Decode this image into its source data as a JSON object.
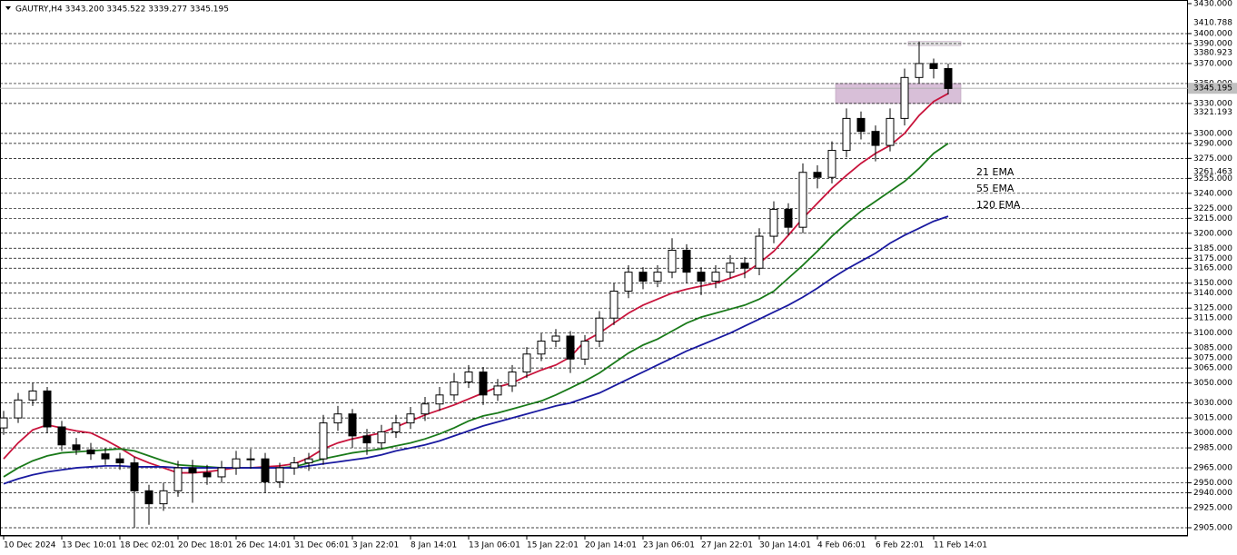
{
  "chart_data": {
    "type": "candlestick",
    "title": "GAUTRY,H4  3343.200 3345.522 3339.277 3345.195",
    "categories": [
      "10 Dec 2024",
      null,
      null,
      null,
      "13 Dec 10:01",
      null,
      null,
      null,
      "18 Dec 02:01",
      null,
      null,
      null,
      "20 Dec 18:01",
      null,
      null,
      null,
      "26 Dec 14:01",
      null,
      null,
      null,
      "31 Dec 06:01",
      null,
      null,
      null,
      "3 Jan 22:01",
      null,
      null,
      null,
      "8 Jan 14:01",
      null,
      null,
      null,
      "13 Jan 06:01",
      null,
      null,
      null,
      "15 Jan 22:01",
      null,
      null,
      null,
      "20 Jan 14:01",
      null,
      null,
      null,
      "23 Jan 06:01",
      null,
      null,
      null,
      "27 Jan 22:01",
      null,
      null,
      null,
      "30 Jan 14:01",
      null,
      null,
      null,
      "4 Feb 06:01",
      null,
      null,
      null,
      "6 Feb 22:01",
      null,
      null,
      null,
      "11 Feb 14:01",
      null
    ],
    "ohlc": [
      [
        3005,
        3022,
        2998,
        3015
      ],
      [
        3015,
        3040,
        3010,
        3033
      ],
      [
        3033,
        3050,
        3027,
        3042
      ],
      [
        3042,
        3046,
        3000,
        3006
      ],
      [
        3006,
        3012,
        2982,
        2988
      ],
      [
        2988,
        2995,
        2978,
        2983
      ],
      [
        2983,
        2990,
        2973,
        2979
      ],
      [
        2979,
        2985,
        2968,
        2974
      ],
      [
        2974,
        2980,
        2963,
        2970
      ],
      [
        2970,
        2976,
        2905,
        2942
      ],
      [
        2942,
        2948,
        2908,
        2929
      ],
      [
        2929,
        2950,
        2922,
        2942
      ],
      [
        2942,
        2972,
        2936,
        2965
      ],
      [
        2965,
        2973,
        2930,
        2960
      ],
      [
        2960,
        2968,
        2948,
        2956
      ],
      [
        2956,
        2972,
        2950,
        2965
      ],
      [
        2965,
        2982,
        2958,
        2974
      ],
      [
        2974,
        2984,
        2964,
        2974
      ],
      [
        2974,
        2980,
        2940,
        2951
      ],
      [
        2951,
        2970,
        2945,
        2965
      ],
      [
        2965,
        2976,
        2958,
        2970
      ],
      [
        2970,
        2980,
        2962,
        2974
      ],
      [
        2974,
        3018,
        2968,
        3010
      ],
      [
        3010,
        3027,
        3002,
        3019
      ],
      [
        3019,
        3024,
        2985,
        2997
      ],
      [
        2997,
        3004,
        2978,
        2990
      ],
      [
        2990,
        3008,
        2984,
        3001
      ],
      [
        3001,
        3018,
        2995,
        3010
      ],
      [
        3010,
        3026,
        3004,
        3019
      ],
      [
        3019,
        3036,
        3012,
        3029
      ],
      [
        3029,
        3046,
        3022,
        3038
      ],
      [
        3038,
        3060,
        3032,
        3051
      ],
      [
        3051,
        3068,
        3045,
        3061
      ],
      [
        3061,
        3066,
        3028,
        3038
      ],
      [
        3038,
        3054,
        3032,
        3047
      ],
      [
        3047,
        3068,
        3041,
        3061
      ],
      [
        3061,
        3086,
        3055,
        3079
      ],
      [
        3079,
        3100,
        3072,
        3092
      ],
      [
        3092,
        3104,
        3086,
        3097
      ],
      [
        3097,
        3102,
        3060,
        3074
      ],
      [
        3074,
        3098,
        3068,
        3092
      ],
      [
        3092,
        3122,
        3086,
        3115
      ],
      [
        3115,
        3150,
        3108,
        3142
      ],
      [
        3142,
        3168,
        3135,
        3161
      ],
      [
        3161,
        3166,
        3144,
        3152
      ],
      [
        3152,
        3168,
        3146,
        3161
      ],
      [
        3161,
        3195,
        3155,
        3183
      ],
      [
        3183,
        3189,
        3150,
        3161
      ],
      [
        3161,
        3166,
        3138,
        3152
      ],
      [
        3152,
        3168,
        3145,
        3161
      ],
      [
        3161,
        3178,
        3155,
        3170
      ],
      [
        3170,
        3176,
        3155,
        3165
      ],
      [
        3165,
        3205,
        3158,
        3197
      ],
      [
        3197,
        3232,
        3190,
        3224
      ],
      [
        3224,
        3230,
        3198,
        3206
      ],
      [
        3206,
        3270,
        3200,
        3261
      ],
      [
        3261,
        3268,
        3245,
        3256
      ],
      [
        3256,
        3292,
        3250,
        3283
      ],
      [
        3283,
        3325,
        3276,
        3315
      ],
      [
        3315,
        3322,
        3294,
        3302
      ],
      [
        3302,
        3308,
        3272,
        3288
      ],
      [
        3288,
        3325,
        3282,
        3315
      ],
      [
        3315,
        3365,
        3308,
        3356
      ],
      [
        3356,
        3392,
        3350,
        3370
      ],
      [
        3370,
        3375,
        3355,
        3365
      ],
      [
        3365,
        3370,
        3339,
        3345
      ]
    ],
    "series": [
      {
        "name": "21 EMA",
        "color": "#c8143c",
        "values": [
          2974,
          2990,
          3003,
          3008,
          3005,
          3002,
          3000,
          2993,
          2985,
          2976,
          2970,
          2965,
          2960,
          2960,
          2961,
          2963,
          2965,
          2965,
          2966,
          2967,
          2969,
          2975,
          2984,
          2990,
          2994,
          2997,
          3000,
          3006,
          3012,
          3018,
          3023,
          3028,
          3034,
          3040,
          3046,
          3050,
          3057,
          3063,
          3068,
          3076,
          3092,
          3100,
          3110,
          3120,
          3128,
          3134,
          3140,
          3144,
          3147,
          3150,
          3155,
          3160,
          3170,
          3182,
          3198,
          3215,
          3230,
          3245,
          3258,
          3270,
          3280,
          3288,
          3300,
          3318,
          3332,
          3340
        ]
      },
      {
        "name": "55 EMA",
        "color": "#1a7a1a",
        "values": [
          2956,
          2965,
          2972,
          2977,
          2980,
          2981,
          2982,
          2983,
          2984,
          2982,
          2977,
          2972,
          2968,
          2967,
          2966,
          2965,
          2965,
          2965,
          2965,
          2965,
          2966,
          2970,
          2974,
          2977,
          2980,
          2982,
          2984,
          2987,
          2990,
          2994,
          2999,
          3005,
          3012,
          3017,
          3020,
          3024,
          3028,
          3032,
          3038,
          3045,
          3052,
          3060,
          3070,
          3080,
          3088,
          3094,
          3102,
          3110,
          3116,
          3120,
          3124,
          3128,
          3134,
          3142,
          3155,
          3168,
          3182,
          3197,
          3210,
          3222,
          3232,
          3242,
          3252,
          3265,
          3280,
          3290
        ]
      },
      {
        "name": "120 EMA",
        "color": "#1a1aa0",
        "values": [
          2949,
          2954,
          2958,
          2961,
          2963,
          2965,
          2966,
          2967,
          2967,
          2966,
          2966,
          2966,
          2965,
          2965,
          2965,
          2965,
          2965,
          2965,
          2965,
          2965,
          2965,
          2967,
          2969,
          2971,
          2973,
          2975,
          2978,
          2982,
          2985,
          2988,
          2992,
          2997,
          3002,
          3007,
          3011,
          3015,
          3019,
          3023,
          3027,
          3030,
          3035,
          3040,
          3047,
          3054,
          3061,
          3068,
          3075,
          3082,
          3088,
          3094,
          3100,
          3107,
          3114,
          3121,
          3128,
          3136,
          3145,
          3155,
          3164,
          3172,
          3180,
          3190,
          3198,
          3205,
          3212,
          3217
        ]
      }
    ],
    "ylim": [
      2905,
      3430
    ],
    "yticks": [
      {
        "value": 3430,
        "label": "3430.000"
      },
      {
        "value": 3400,
        "label": "3400.000"
      },
      {
        "value": 3390,
        "label": "3390.000"
      },
      {
        "value": 3370,
        "label": "3370.000"
      },
      {
        "value": 3350,
        "label": "3350.000"
      },
      {
        "value": 3330,
        "label": "3330.000"
      },
      {
        "value": 3300,
        "label": "3300.000"
      },
      {
        "value": 3290,
        "label": "3290.000"
      },
      {
        "value": 3275,
        "label": "3275.000"
      },
      {
        "value": 3255,
        "label": "3255.000"
      },
      {
        "value": 3240,
        "label": "3240.000"
      },
      {
        "value": 3225,
        "label": "3225.000"
      },
      {
        "value": 3215,
        "label": "3215.000"
      },
      {
        "value": 3200,
        "label": "3200.000"
      },
      {
        "value": 3185,
        "label": "3185.000"
      },
      {
        "value": 3175,
        "label": "3175.000"
      },
      {
        "value": 3165,
        "label": "3165.000"
      },
      {
        "value": 3150,
        "label": "3150.000"
      },
      {
        "value": 3140,
        "label": "3140.000"
      },
      {
        "value": 3125,
        "label": "3125.000"
      },
      {
        "value": 3115,
        "label": "3115.000"
      },
      {
        "value": 3100,
        "label": "3100.000"
      },
      {
        "value": 3085,
        "label": "3085.000"
      },
      {
        "value": 3075,
        "label": "3075.000"
      },
      {
        "value": 3065,
        "label": "3065.000"
      },
      {
        "value": 3050,
        "label": "3050.000"
      },
      {
        "value": 3030,
        "label": "3030.000"
      },
      {
        "value": 3015,
        "label": "3015.000"
      },
      {
        "value": 3000,
        "label": "3000.000"
      },
      {
        "value": 2985,
        "label": "2985.000"
      },
      {
        "value": 2965,
        "label": "2965.000"
      },
      {
        "value": 2950,
        "label": "2950.000"
      },
      {
        "value": 2940,
        "label": "2940.000"
      },
      {
        "value": 2925,
        "label": "2925.000"
      },
      {
        "value": 2905,
        "label": "2905.000"
      }
    ],
    "level_labels": [
      3410.788,
      3380.923,
      3321.193,
      3261.463
    ],
    "last_price": 3345.195,
    "zones": [
      {
        "low": 3330,
        "high": 3350,
        "color": "#d8bfd8"
      },
      {
        "low": 3388,
        "high": 3392,
        "color": "#e2e2e2"
      }
    ],
    "grid": true
  }
}
